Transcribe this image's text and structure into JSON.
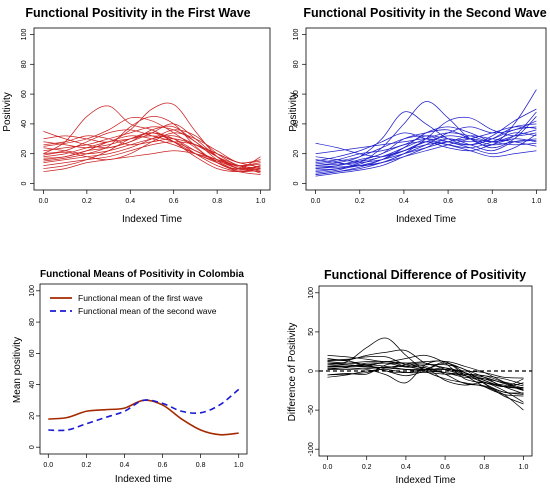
{
  "chart_data": [
    {
      "type": "line",
      "title": "Functional Positivity in the First Wave",
      "xlabel": "Indexed Time",
      "ylabel": "Positivity",
      "xlim": [
        0,
        1
      ],
      "ylim": [
        0,
        100
      ],
      "xticks": [
        "0.0",
        "0.2",
        "0.4",
        "0.6",
        "0.8",
        "1.0"
      ],
      "yticks": [
        "0",
        "20",
        "40",
        "60",
        "80",
        "100"
      ],
      "color": "#cc2222",
      "x": [
        0,
        0.1,
        0.2,
        0.3,
        0.4,
        0.5,
        0.6,
        0.7,
        0.8,
        0.9,
        1.0
      ],
      "series": [
        {
          "values": [
            18,
            20,
            24,
            28,
            30,
            34,
            30,
            20,
            12,
            8,
            9
          ]
        },
        {
          "values": [
            20,
            28,
            45,
            52,
            40,
            36,
            28,
            18,
            10,
            8,
            10
          ]
        },
        {
          "values": [
            15,
            17,
            20,
            25,
            38,
            45,
            40,
            25,
            14,
            9,
            11
          ]
        },
        {
          "values": [
            30,
            32,
            30,
            28,
            36,
            50,
            53,
            35,
            18,
            10,
            12
          ]
        },
        {
          "values": [
            10,
            12,
            16,
            22,
            30,
            34,
            28,
            20,
            15,
            12,
            14
          ]
        },
        {
          "values": [
            22,
            24,
            26,
            30,
            34,
            38,
            36,
            28,
            16,
            10,
            8
          ]
        },
        {
          "values": [
            25,
            27,
            30,
            36,
            44,
            42,
            34,
            24,
            14,
            8,
            6
          ]
        },
        {
          "values": [
            14,
            16,
            18,
            20,
            24,
            30,
            36,
            32,
            20,
            12,
            10
          ]
        },
        {
          "values": [
            28,
            26,
            24,
            26,
            30,
            32,
            30,
            22,
            15,
            9,
            12
          ]
        },
        {
          "values": [
            17,
            18,
            22,
            28,
            32,
            30,
            26,
            20,
            14,
            10,
            18
          ]
        },
        {
          "values": [
            12,
            14,
            16,
            18,
            22,
            26,
            28,
            26,
            20,
            14,
            15
          ]
        },
        {
          "values": [
            35,
            30,
            26,
            24,
            28,
            34,
            40,
            30,
            18,
            10,
            8
          ]
        },
        {
          "values": [
            20,
            22,
            28,
            34,
            36,
            32,
            28,
            22,
            16,
            12,
            13
          ]
        },
        {
          "values": [
            16,
            18,
            22,
            24,
            28,
            36,
            38,
            28,
            18,
            11,
            9
          ]
        },
        {
          "values": [
            24,
            22,
            20,
            22,
            26,
            30,
            32,
            26,
            18,
            12,
            7
          ]
        },
        {
          "values": [
            8,
            10,
            14,
            16,
            18,
            20,
            22,
            20,
            16,
            12,
            10
          ]
        },
        {
          "values": [
            19,
            21,
            18,
            16,
            20,
            28,
            34,
            30,
            22,
            14,
            16
          ]
        },
        {
          "values": [
            26,
            28,
            32,
            30,
            26,
            28,
            30,
            26,
            20,
            14,
            11
          ]
        }
      ]
    },
    {
      "type": "line",
      "title": "Functional Positivity in the Second Wave",
      "xlabel": "Indexed Time",
      "ylabel": "Positivity",
      "xlim": [
        0,
        1
      ],
      "ylim": [
        0,
        100
      ],
      "xticks": [
        "0.0",
        "0.2",
        "0.4",
        "0.6",
        "0.8",
        "1.0"
      ],
      "yticks": [
        "0",
        "20",
        "40",
        "60",
        "80",
        "100"
      ],
      "color": "#2222cc",
      "x": [
        0,
        0.1,
        0.2,
        0.3,
        0.4,
        0.5,
        0.6,
        0.7,
        0.8,
        0.9,
        1.0
      ],
      "series": [
        {
          "values": [
            8,
            10,
            14,
            24,
            40,
            55,
            44,
            30,
            26,
            40,
            63
          ]
        },
        {
          "values": [
            10,
            12,
            16,
            20,
            30,
            34,
            36,
            30,
            24,
            30,
            45
          ]
        },
        {
          "values": [
            12,
            14,
            18,
            30,
            48,
            40,
            30,
            26,
            30,
            38,
            40
          ]
        },
        {
          "values": [
            6,
            8,
            10,
            14,
            20,
            30,
            42,
            44,
            36,
            32,
            34
          ]
        },
        {
          "values": [
            14,
            16,
            20,
            22,
            26,
            32,
            30,
            28,
            30,
            36,
            38
          ]
        },
        {
          "values": [
            20,
            22,
            24,
            26,
            28,
            30,
            28,
            26,
            32,
            42,
            50
          ]
        },
        {
          "values": [
            5,
            7,
            9,
            12,
            18,
            24,
            30,
            26,
            22,
            28,
            30
          ]
        },
        {
          "values": [
            9,
            10,
            12,
            16,
            22,
            28,
            26,
            24,
            28,
            34,
            32
          ]
        },
        {
          "values": [
            16,
            14,
            12,
            14,
            20,
            26,
            34,
            38,
            34,
            36,
            42
          ]
        },
        {
          "values": [
            11,
            12,
            15,
            20,
            26,
            28,
            24,
            22,
            26,
            30,
            28
          ]
        },
        {
          "values": [
            7,
            9,
            13,
            18,
            22,
            26,
            28,
            32,
            30,
            28,
            25
          ]
        },
        {
          "values": [
            13,
            15,
            18,
            24,
            30,
            32,
            28,
            24,
            20,
            24,
            33
          ]
        },
        {
          "values": [
            15,
            18,
            22,
            28,
            34,
            30,
            26,
            22,
            18,
            20,
            22
          ]
        },
        {
          "values": [
            10,
            11,
            12,
            14,
            18,
            22,
            26,
            30,
            34,
            38,
            37
          ]
        },
        {
          "values": [
            18,
            16,
            15,
            18,
            24,
            30,
            34,
            32,
            28,
            32,
            36
          ]
        },
        {
          "values": [
            27,
            24,
            20,
            18,
            22,
            28,
            32,
            30,
            26,
            28,
            29
          ]
        },
        {
          "values": [
            6,
            8,
            11,
            16,
            24,
            34,
            38,
            34,
            28,
            26,
            27
          ]
        },
        {
          "values": [
            12,
            13,
            14,
            16,
            20,
            24,
            28,
            30,
            28,
            32,
            48
          ]
        }
      ]
    },
    {
      "type": "line",
      "title": "Functional Means of Positivity in Colombia",
      "xlabel": "Indexed time",
      "ylabel": "Mean positivity",
      "xlim": [
        0,
        1
      ],
      "ylim": [
        0,
        100
      ],
      "xticks": [
        "0.0",
        "0.2",
        "0.4",
        "0.6",
        "0.8",
        "1.0"
      ],
      "yticks": [
        "0",
        "20",
        "40",
        "60",
        "80",
        "100"
      ],
      "legend_position": "top",
      "x": [
        0,
        0.1,
        0.2,
        0.3,
        0.4,
        0.5,
        0.6,
        0.7,
        0.8,
        0.9,
        1.0
      ],
      "series": [
        {
          "name": "Functional mean of the first wave",
          "color": "#a52a00",
          "style": "solid",
          "values": [
            18,
            19,
            23,
            24,
            25,
            30,
            27,
            18,
            11,
            8,
            9
          ]
        },
        {
          "name": "Functional mean of the second wave",
          "color": "#1a1ad6",
          "style": "dashed",
          "values": [
            11,
            11,
            15,
            19,
            23,
            30,
            28,
            23,
            22,
            27,
            37
          ]
        }
      ]
    },
    {
      "type": "line",
      "title": "Functional Difference of Positivity",
      "xlabel": "Indexed Time",
      "ylabel": "Difference of Positivity",
      "xlim": [
        0,
        1
      ],
      "ylim": [
        -100,
        100
      ],
      "xticks": [
        "0.0",
        "0.2",
        "0.4",
        "0.6",
        "0.8",
        "1.0"
      ],
      "yticks": [
        "-100",
        "-50",
        "0",
        "50",
        "100"
      ],
      "color": "#000000",
      "reference_line": 0,
      "x": [
        0,
        0.1,
        0.2,
        0.3,
        0.4,
        0.5,
        0.6,
        0.7,
        0.8,
        0.9,
        1.0
      ],
      "series": [
        {
          "values": [
            10,
            12,
            30,
            42,
            20,
            0,
            -10,
            -15,
            -20,
            -30,
            -50
          ]
        },
        {
          "values": [
            5,
            6,
            8,
            10,
            5,
            4,
            -12,
            -18,
            -15,
            -25,
            -40
          ]
        },
        {
          "values": [
            3,
            4,
            2,
            -5,
            -15,
            8,
            12,
            -5,
            -20,
            -30,
            -32
          ]
        },
        {
          "values": [
            20,
            18,
            15,
            12,
            16,
            20,
            10,
            -10,
            -15,
            -18,
            -25
          ]
        },
        {
          "values": [
            -5,
            -3,
            -4,
            8,
            10,
            2,
            -2,
            -8,
            -10,
            -15,
            -22
          ]
        },
        {
          "values": [
            2,
            2,
            3,
            5,
            6,
            8,
            8,
            2,
            -16,
            -32,
            -42
          ]
        },
        {
          "values": [
            16,
            14,
            20,
            24,
            26,
            10,
            4,
            -4,
            -8,
            -16,
            -24
          ]
        },
        {
          "values": [
            5,
            6,
            8,
            6,
            2,
            2,
            10,
            2,
            -8,
            -20,
            -22
          ]
        },
        {
          "values": [
            8,
            10,
            12,
            12,
            10,
            6,
            -4,
            -16,
            -19,
            -27,
            -30
          ]
        },
        {
          "values": [
            6,
            8,
            6,
            12,
            6,
            2,
            2,
            -2,
            -12,
            -20,
            -10
          ]
        },
        {
          "values": [
            -5,
            -4,
            -2,
            4,
            8,
            10,
            2,
            -6,
            -14,
            -20,
            -15
          ]
        },
        {
          "values": [
            12,
            10,
            8,
            0,
            -2,
            2,
            12,
            6,
            -2,
            -14,
            -25
          ]
        },
        {
          "values": [
            10,
            8,
            6,
            4,
            2,
            2,
            2,
            0,
            -2,
            -8,
            -9
          ]
        },
        {
          "values": [
            2,
            5,
            10,
            10,
            10,
            12,
            12,
            -2,
            -16,
            -27,
            -28
          ]
        },
        {
          "values": [
            6,
            6,
            5,
            4,
            2,
            0,
            -2,
            -6,
            -10,
            -20,
            -29
          ]
        },
        {
          "values": [
            -8,
            -5,
            0,
            2,
            -2,
            -2,
            -4,
            -4,
            -6,
            -10,
            -17
          ]
        },
        {
          "values": [
            13,
            13,
            7,
            0,
            -6,
            0,
            4,
            -2,
            -12,
            -20,
            -21
          ]
        },
        {
          "values": [
            14,
            15,
            18,
            18,
            8,
            4,
            -2,
            -4,
            -6,
            -14,
            -19
          ]
        }
      ]
    }
  ]
}
